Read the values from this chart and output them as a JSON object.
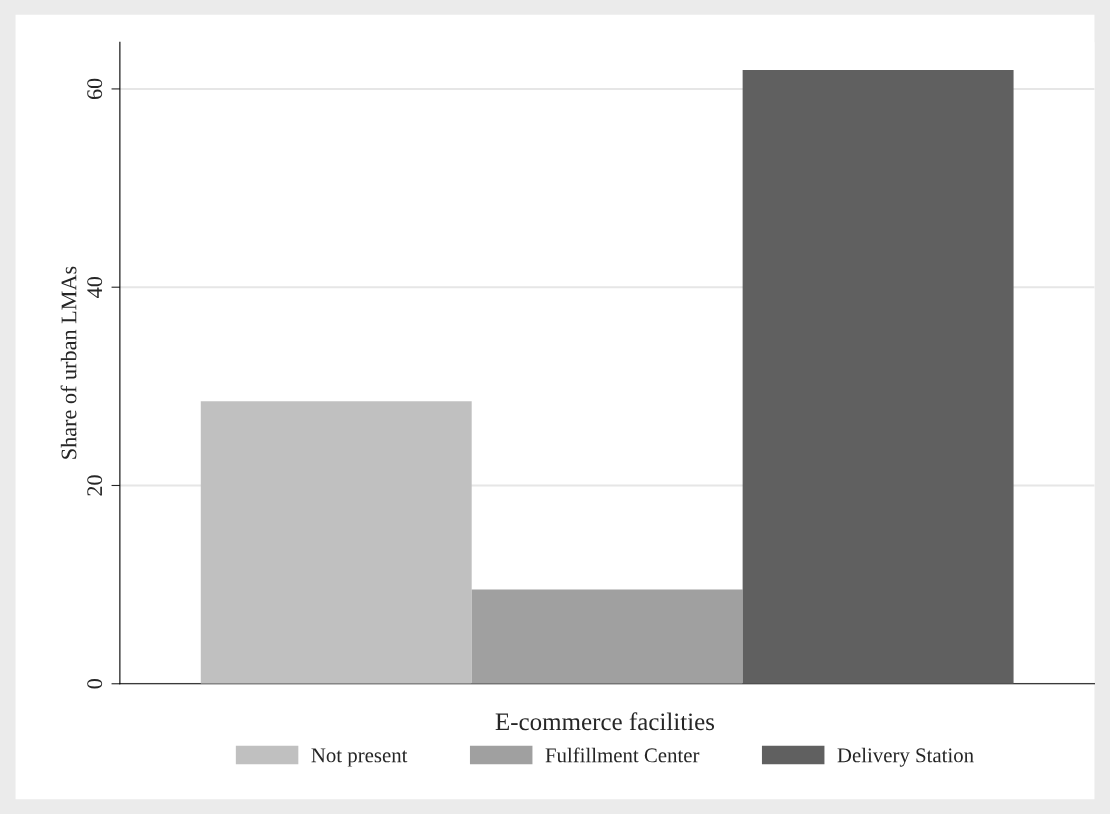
{
  "chart_data": {
    "type": "bar",
    "ylabel": "Share of urban LMAs",
    "legend_title": "E-commerce facilities",
    "categories": [
      null
    ],
    "series": [
      {
        "name": "Not present",
        "color": "#c0c0c0",
        "values": [
          28.5
        ]
      },
      {
        "name": "Fulfillment Center",
        "color": "#a0a0a0",
        "values": [
          9.5
        ]
      },
      {
        "name": "Delivery Station",
        "color": "#606060",
        "values": [
          61.9
        ]
      }
    ],
    "ylim": [
      0,
      64.7
    ],
    "yticks": [
      0,
      20,
      40,
      60
    ],
    "grid": "y",
    "legend": "bottom"
  }
}
